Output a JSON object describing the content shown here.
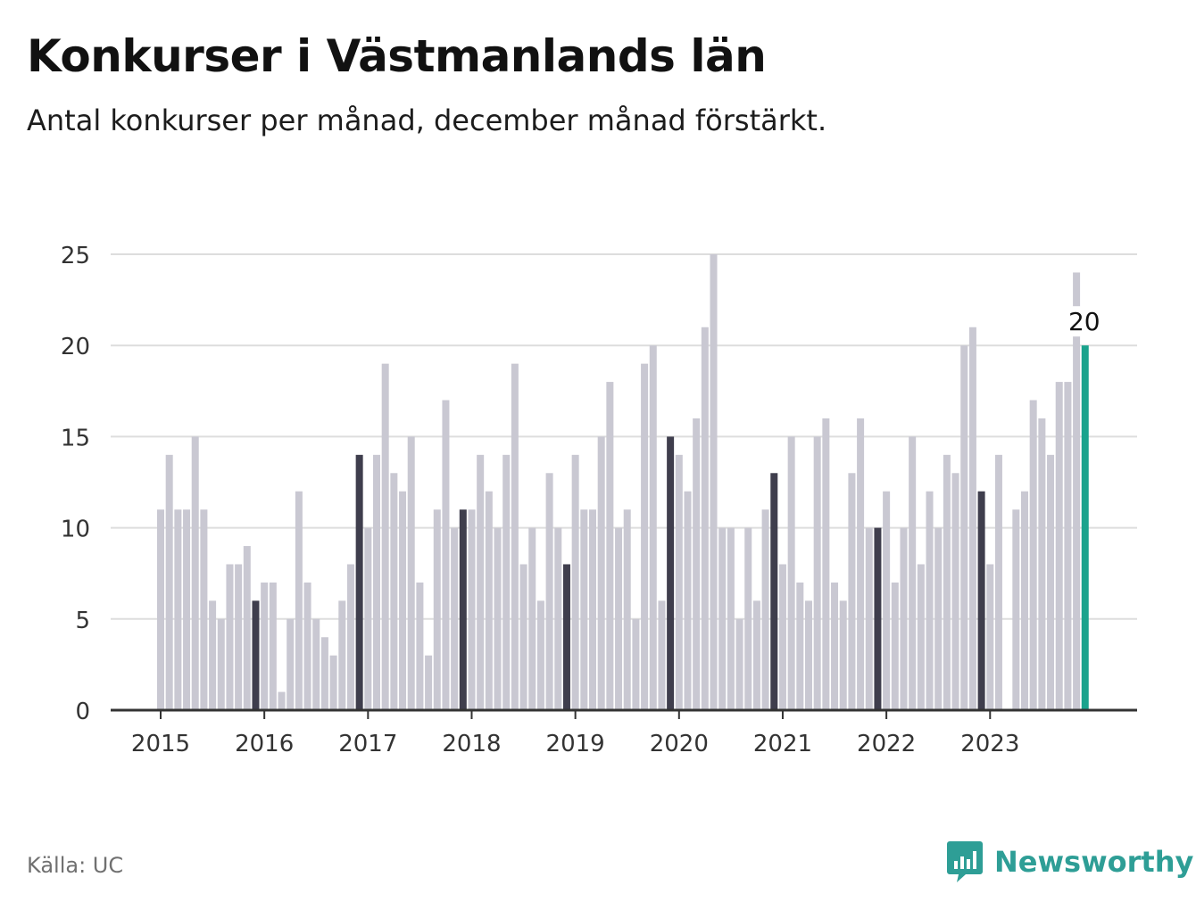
{
  "header": {
    "title": "Konkurser i Västmanlands län",
    "subtitle": "Antal konkurser per månad, december månad förstärkt."
  },
  "footer": {
    "source": "Källa: UC",
    "brand": "Newsworthy"
  },
  "colors": {
    "bar": "#c9c8d2",
    "december": "#3f3e4d",
    "latest": "#1aa38d",
    "grid": "#dddddd",
    "axis": "#333333",
    "brand": "#2e9e96"
  },
  "chart_data": {
    "type": "bar",
    "ylim": [
      0,
      25
    ],
    "yticks": [
      "0",
      "5",
      "10",
      "15",
      "20",
      "25"
    ],
    "xticks": [
      "2015",
      "2016",
      "2017",
      "2018",
      "2019",
      "2020",
      "2021",
      "2022",
      "2023"
    ],
    "highlight_label": "20",
    "series": [
      {
        "values": [
          11,
          14,
          11,
          11,
          15,
          11,
          6,
          5,
          8,
          8,
          9,
          6,
          7,
          7,
          1,
          5,
          12,
          7,
          5,
          4,
          3,
          6,
          8,
          14,
          10,
          14,
          19,
          13,
          12,
          15,
          7,
          3,
          11,
          17,
          10,
          11,
          11,
          14,
          12,
          10,
          14,
          19,
          8,
          10,
          6,
          13,
          10,
          8,
          14,
          11,
          11,
          15,
          18,
          10,
          11,
          5,
          19,
          20,
          6,
          15,
          14,
          12,
          16,
          21,
          25,
          10,
          10,
          5,
          10,
          6,
          11,
          13,
          8,
          15,
          7,
          6,
          15,
          16,
          7,
          6,
          13,
          16,
          10,
          10,
          12,
          7,
          10,
          15,
          8,
          12,
          10,
          14,
          13,
          20,
          21,
          12,
          8,
          14,
          0,
          11,
          12,
          17,
          16,
          14,
          18,
          18,
          24,
          20
        ]
      }
    ]
  }
}
